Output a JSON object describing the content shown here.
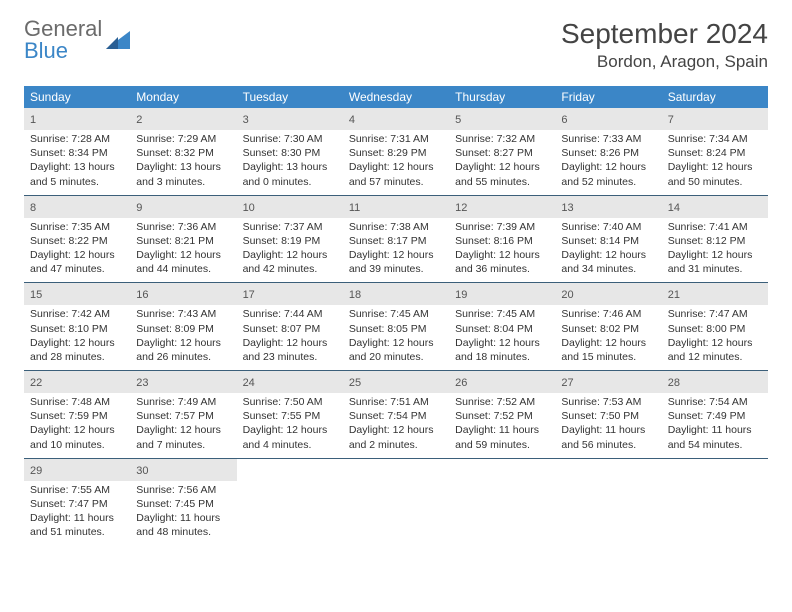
{
  "logo": {
    "word1": "General",
    "word2": "Blue"
  },
  "title": "September 2024",
  "location": "Bordon, Aragon, Spain",
  "weekdays": [
    "Sunday",
    "Monday",
    "Tuesday",
    "Wednesday",
    "Thursday",
    "Friday",
    "Saturday"
  ],
  "colors": {
    "header_bg": "#3b86c7",
    "header_text": "#ffffff",
    "daynum_bg": "#e7e7e7",
    "week_border": "#3b5f7a",
    "logo_gray": "#6b6b6b",
    "logo_blue": "#3b86c7"
  },
  "weeks": [
    [
      {
        "n": "1",
        "sr": "7:28 AM",
        "ss": "8:34 PM",
        "dl": "13 hours and 5 minutes."
      },
      {
        "n": "2",
        "sr": "7:29 AM",
        "ss": "8:32 PM",
        "dl": "13 hours and 3 minutes."
      },
      {
        "n": "3",
        "sr": "7:30 AM",
        "ss": "8:30 PM",
        "dl": "13 hours and 0 minutes."
      },
      {
        "n": "4",
        "sr": "7:31 AM",
        "ss": "8:29 PM",
        "dl": "12 hours and 57 minutes."
      },
      {
        "n": "5",
        "sr": "7:32 AM",
        "ss": "8:27 PM",
        "dl": "12 hours and 55 minutes."
      },
      {
        "n": "6",
        "sr": "7:33 AM",
        "ss": "8:26 PM",
        "dl": "12 hours and 52 minutes."
      },
      {
        "n": "7",
        "sr": "7:34 AM",
        "ss": "8:24 PM",
        "dl": "12 hours and 50 minutes."
      }
    ],
    [
      {
        "n": "8",
        "sr": "7:35 AM",
        "ss": "8:22 PM",
        "dl": "12 hours and 47 minutes."
      },
      {
        "n": "9",
        "sr": "7:36 AM",
        "ss": "8:21 PM",
        "dl": "12 hours and 44 minutes."
      },
      {
        "n": "10",
        "sr": "7:37 AM",
        "ss": "8:19 PM",
        "dl": "12 hours and 42 minutes."
      },
      {
        "n": "11",
        "sr": "7:38 AM",
        "ss": "8:17 PM",
        "dl": "12 hours and 39 minutes."
      },
      {
        "n": "12",
        "sr": "7:39 AM",
        "ss": "8:16 PM",
        "dl": "12 hours and 36 minutes."
      },
      {
        "n": "13",
        "sr": "7:40 AM",
        "ss": "8:14 PM",
        "dl": "12 hours and 34 minutes."
      },
      {
        "n": "14",
        "sr": "7:41 AM",
        "ss": "8:12 PM",
        "dl": "12 hours and 31 minutes."
      }
    ],
    [
      {
        "n": "15",
        "sr": "7:42 AM",
        "ss": "8:10 PM",
        "dl": "12 hours and 28 minutes."
      },
      {
        "n": "16",
        "sr": "7:43 AM",
        "ss": "8:09 PM",
        "dl": "12 hours and 26 minutes."
      },
      {
        "n": "17",
        "sr": "7:44 AM",
        "ss": "8:07 PM",
        "dl": "12 hours and 23 minutes."
      },
      {
        "n": "18",
        "sr": "7:45 AM",
        "ss": "8:05 PM",
        "dl": "12 hours and 20 minutes."
      },
      {
        "n": "19",
        "sr": "7:45 AM",
        "ss": "8:04 PM",
        "dl": "12 hours and 18 minutes."
      },
      {
        "n": "20",
        "sr": "7:46 AM",
        "ss": "8:02 PM",
        "dl": "12 hours and 15 minutes."
      },
      {
        "n": "21",
        "sr": "7:47 AM",
        "ss": "8:00 PM",
        "dl": "12 hours and 12 minutes."
      }
    ],
    [
      {
        "n": "22",
        "sr": "7:48 AM",
        "ss": "7:59 PM",
        "dl": "12 hours and 10 minutes."
      },
      {
        "n": "23",
        "sr": "7:49 AM",
        "ss": "7:57 PM",
        "dl": "12 hours and 7 minutes."
      },
      {
        "n": "24",
        "sr": "7:50 AM",
        "ss": "7:55 PM",
        "dl": "12 hours and 4 minutes."
      },
      {
        "n": "25",
        "sr": "7:51 AM",
        "ss": "7:54 PM",
        "dl": "12 hours and 2 minutes."
      },
      {
        "n": "26",
        "sr": "7:52 AM",
        "ss": "7:52 PM",
        "dl": "11 hours and 59 minutes."
      },
      {
        "n": "27",
        "sr": "7:53 AM",
        "ss": "7:50 PM",
        "dl": "11 hours and 56 minutes."
      },
      {
        "n": "28",
        "sr": "7:54 AM",
        "ss": "7:49 PM",
        "dl": "11 hours and 54 minutes."
      }
    ],
    [
      {
        "n": "29",
        "sr": "7:55 AM",
        "ss": "7:47 PM",
        "dl": "11 hours and 51 minutes."
      },
      {
        "n": "30",
        "sr": "7:56 AM",
        "ss": "7:45 PM",
        "dl": "11 hours and 48 minutes."
      },
      null,
      null,
      null,
      null,
      null
    ]
  ],
  "labels": {
    "sunrise": "Sunrise: ",
    "sunset": "Sunset: ",
    "daylight": "Daylight: "
  }
}
